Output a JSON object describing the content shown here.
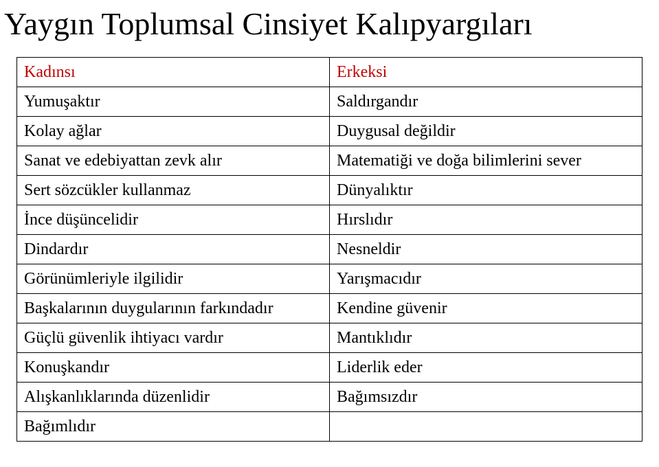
{
  "slide": {
    "title": "Yaygın Toplumsal Cinsiyet Kalıpyargıları",
    "title_fontsize": 46,
    "title_color": "#000000",
    "background_color": "#ffffff"
  },
  "table": {
    "type": "table",
    "border_color": "#000000",
    "cell_fontsize": 24,
    "header_color": "#c00000",
    "body_color": "#000000",
    "columns": [
      {
        "label": "Kadınsı",
        "color": "#c00000"
      },
      {
        "label": "Erkeksi",
        "color": "#c00000"
      }
    ],
    "rows": [
      [
        "Yumuşaktır",
        "Saldırgandır"
      ],
      [
        "Kolay ağlar",
        "Duygusal değildir"
      ],
      [
        "Sanat ve edebiyattan zevk alır",
        "Matematiği ve doğa bilimlerini sever"
      ],
      [
        "Sert sözcükler kullanmaz",
        "Dünyalıktır"
      ],
      [
        "İnce düşüncelidir",
        "Hırslıdır"
      ],
      [
        "Dindardır",
        "Nesneldir"
      ],
      [
        "Görünümleriyle ilgilidir",
        "Yarışmacıdır"
      ],
      [
        "Başkalarının duygularının farkındadır",
        "Kendine güvenir"
      ],
      [
        "Güçlü güvenlik ihtiyacı vardır",
        "Mantıklıdır"
      ],
      [
        "Konuşkandır",
        "Liderlik eder"
      ],
      [
        "Alışkanlıklarında düzenlidir",
        "Bağımsızdır"
      ],
      [
        "Bağımlıdır",
        ""
      ]
    ]
  }
}
